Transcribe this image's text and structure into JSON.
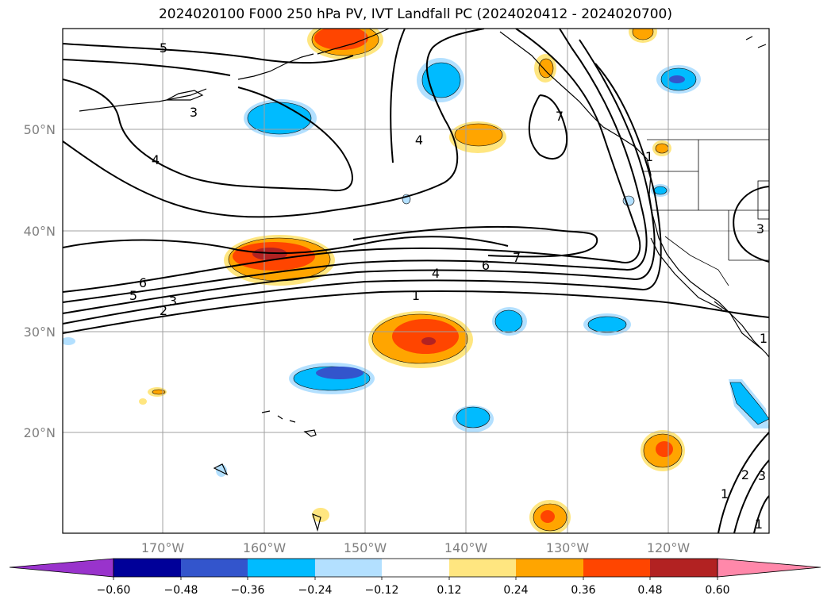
{
  "title": "2024020100 F000 250 hPa PV, IVT Landfall PC (2024020412 - 2024020700)",
  "colors": {
    "grid": "#a0a0a0",
    "coast": "#000000",
    "contour": "#000000",
    "levels": [
      "#9933cc",
      "#000099",
      "#3355cc",
      "#00bbff",
      "#b3e0ff",
      "#ffffff",
      "#ffe680",
      "#ffa500",
      "#ff4500",
      "#b22222",
      "#ff88aa"
    ]
  },
  "chart_data": {
    "type": "contour-map",
    "projection": "PlateCarree",
    "lon_range": [
      -180,
      -110
    ],
    "lat_range": [
      10,
      60
    ],
    "lat_ticks": [
      "20°N",
      "30°N",
      "40°N",
      "50°N"
    ],
    "lon_ticks": [
      "170°W",
      "160°W",
      "150°W",
      "140°W",
      "130°W",
      "120°W"
    ],
    "colorbar_ticks": [
      "−0.60",
      "−0.48",
      "−0.36",
      "−0.24",
      "−0.12",
      "0.12",
      "0.24",
      "0.36",
      "0.48",
      "0.60"
    ],
    "contour_labels": [
      "5",
      "3",
      "4",
      "6",
      "5",
      "2",
      "3",
      "4",
      "6",
      "7",
      "1",
      "4",
      "7",
      "1",
      "1",
      "2",
      "3",
      "1",
      "3",
      "1"
    ]
  }
}
